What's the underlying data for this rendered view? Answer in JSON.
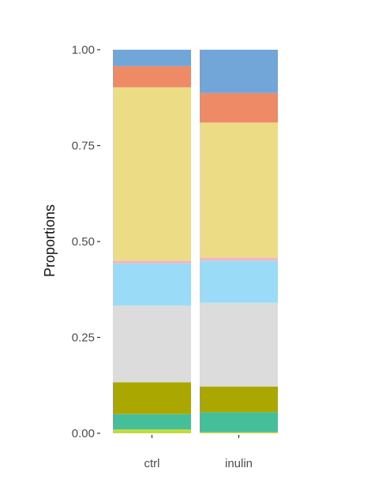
{
  "chart_data": {
    "type": "bar",
    "stacked": true,
    "categories": [
      "ctrl",
      "inulin"
    ],
    "xlabel": "",
    "ylabel": "Proportions",
    "ylim": [
      0,
      1
    ],
    "y_ticks": [
      "0.00",
      "0.25",
      "0.50",
      "0.75",
      "1.00"
    ],
    "y_tick_values": [
      0,
      0.25,
      0.5,
      0.75,
      1.0
    ],
    "grid": false,
    "legend": "none",
    "series": [
      {
        "color": "#c7d83b",
        "values": [
          0.01,
          0.003
        ]
      },
      {
        "color": "#45bf9a",
        "values": [
          0.04,
          0.052
        ]
      },
      {
        "color": "#aaa800",
        "values": [
          0.083,
          0.067
        ]
      },
      {
        "color": "#dcdcdc",
        "values": [
          0.2,
          0.218
        ]
      },
      {
        "color": "#9adcf8",
        "values": [
          0.11,
          0.11
        ]
      },
      {
        "color": "#f2b6c0",
        "values": [
          0.007,
          0.008
        ]
      },
      {
        "color": "#ecdc86",
        "values": [
          0.452,
          0.352
        ]
      },
      {
        "color": "#ee8b66",
        "values": [
          0.055,
          0.077
        ]
      },
      {
        "color": "#72a6d9",
        "values": [
          0.043,
          0.113
        ]
      }
    ]
  }
}
